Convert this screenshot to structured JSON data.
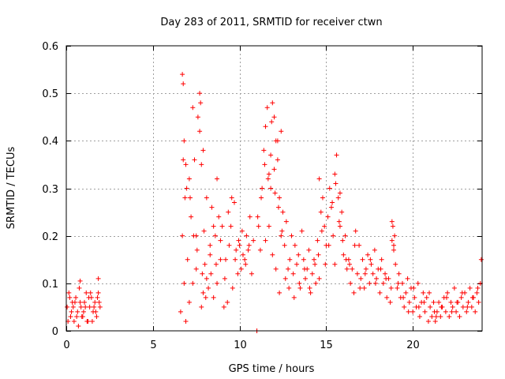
{
  "chart_data": {
    "type": "scatter",
    "title": "Day 283 of 2011, SRMTID for receiver ctwn",
    "xlabel": "GPS time / hours",
    "ylabel": "SRMTID / TECUs",
    "xlim": [
      0,
      24
    ],
    "ylim": [
      0,
      0.6
    ],
    "x_ticks": [
      0,
      5,
      10,
      15,
      20
    ],
    "x_tick_labels": [
      "0",
      "5",
      "10",
      "15",
      "20"
    ],
    "y_ticks": [
      0,
      0.1,
      0.2,
      0.3,
      0.4,
      0.5,
      0.6
    ],
    "y_tick_labels": [
      "0",
      "0.1",
      "0.2",
      "0.3",
      "0.4",
      "0.5",
      "0.6"
    ],
    "grid": true,
    "marker": "plus",
    "color": "#ff0000",
    "series": [
      {
        "name": "SRMTID",
        "x": [
          0.05,
          0.15,
          0.25,
          0.35,
          0.45,
          0.55,
          0.65,
          0.75,
          0.85,
          0.95,
          1.05,
          1.15,
          1.25,
          1.35,
          1.45,
          1.55,
          1.65,
          1.75,
          1.85,
          1.95,
          0.1,
          0.3,
          0.5,
          0.7,
          0.9,
          1.1,
          1.3,
          1.5,
          1.7,
          1.9,
          0.2,
          0.4,
          0.6,
          0.8,
          1.0,
          1.2,
          1.4,
          1.6,
          1.8,
          0.8,
          1.85,
          6.6,
          6.7,
          6.75,
          6.8,
          6.85,
          6.9,
          7.0,
          7.1,
          7.2,
          7.3,
          7.4,
          7.5,
          7.6,
          7.7,
          7.75,
          7.8,
          7.85,
          7.9,
          7.95,
          8.0,
          8.1,
          8.2,
          8.3,
          8.4,
          8.5,
          8.6,
          8.7,
          8.8,
          8.9,
          9.0,
          6.7,
          6.8,
          6.9,
          7.1,
          7.3,
          7.5,
          7.7,
          7.9,
          8.1,
          8.3,
          8.5,
          8.7,
          8.9,
          6.75,
          6.95,
          7.15,
          7.35,
          7.55,
          7.8,
          8.05,
          8.35,
          8.65,
          9.1,
          9.2,
          9.3,
          9.4,
          9.5,
          9.6,
          9.7,
          9.8,
          9.9,
          10.0,
          10.1,
          10.2,
          10.3,
          10.4,
          10.5,
          10.6,
          10.7,
          10.8,
          9.15,
          9.35,
          9.55,
          9.75,
          9.95,
          10.15,
          10.35,
          10.55,
          11.0,
          11.1,
          11.2,
          11.3,
          11.4,
          11.5,
          11.6,
          11.7,
          11.8,
          11.9,
          12.0,
          12.1,
          12.2,
          12.3,
          12.4,
          12.5,
          12.6,
          12.7,
          12.8,
          12.9,
          13.0,
          11.05,
          11.25,
          11.45,
          11.65,
          11.85,
          12.05,
          12.25,
          12.45,
          12.65,
          12.85,
          11.5,
          11.7,
          11.9,
          12.1,
          12.3,
          11.8,
          12.0,
          12.2,
          12.4,
          13.1,
          13.2,
          13.3,
          13.4,
          13.5,
          13.6,
          13.7,
          13.8,
          13.9,
          14.0,
          14.1,
          14.2,
          14.3,
          14.4,
          13.15,
          13.45,
          13.75,
          14.05,
          14.35,
          14.5,
          14.6,
          14.7,
          14.8,
          14.9,
          15.0,
          15.1,
          15.2,
          15.3,
          15.4,
          15.5,
          15.6,
          15.7,
          15.8,
          15.9,
          16.0,
          16.1,
          16.2,
          14.55,
          14.75,
          14.95,
          15.15,
          15.35,
          15.55,
          15.75,
          15.95,
          16.15,
          15.5,
          15.8,
          14.6,
          16.3,
          16.4,
          16.5,
          16.6,
          16.7,
          16.8,
          16.9,
          17.0,
          17.1,
          17.2,
          17.3,
          17.4,
          17.5,
          17.6,
          17.7,
          17.8,
          17.9,
          18.0,
          18.1,
          18.2,
          18.3,
          18.4,
          18.5,
          18.6,
          16.35,
          16.65,
          16.95,
          17.25,
          17.55,
          17.85,
          18.15,
          18.45,
          18.7,
          18.75,
          18.8,
          18.85,
          18.9,
          18.95,
          19.0,
          18.8,
          18.9,
          19.1,
          19.2,
          19.3,
          19.4,
          19.5,
          19.6,
          19.7,
          19.8,
          19.9,
          20.0,
          20.1,
          20.2,
          20.3,
          20.4,
          20.5,
          20.6,
          20.7,
          20.8,
          20.9,
          21.0,
          21.1,
          21.2,
          19.15,
          19.45,
          19.75,
          20.05,
          20.35,
          20.65,
          20.95,
          21.25,
          21.3,
          21.4,
          21.5,
          21.6,
          21.7,
          21.8,
          21.9,
          22.0,
          22.1,
          22.2,
          22.3,
          22.4,
          22.5,
          22.6,
          22.7,
          22.8,
          22.9,
          23.0,
          23.1,
          23.2,
          23.3,
          23.4,
          23.5,
          23.6,
          23.7,
          23.8,
          23.9,
          21.35,
          21.65,
          21.95,
          22.25,
          22.55,
          22.85,
          23.15,
          23.45,
          23.75,
          23.95,
          11.0
        ],
        "y": [
          0.05,
          0.08,
          0.03,
          0.06,
          0.02,
          0.07,
          0.04,
          0.09,
          0.05,
          0.03,
          0.06,
          0.08,
          0.02,
          0.05,
          0.07,
          0.04,
          0.06,
          0.03,
          0.08,
          0.05,
          0.02,
          0.04,
          0.06,
          0.01,
          0.03,
          0.05,
          0.07,
          0.02,
          0.04,
          0.06,
          0.07,
          0.05,
          0.03,
          0.06,
          0.04,
          0.02,
          0.08,
          0.05,
          0.07,
          0.105,
          0.11,
          0.04,
          0.54,
          0.52,
          0.1,
          0.28,
          0.02,
          0.15,
          0.06,
          0.24,
          0.47,
          0.36,
          0.2,
          0.45,
          0.5,
          0.48,
          0.35,
          0.12,
          0.08,
          0.21,
          0.14,
          0.11,
          0.09,
          0.18,
          0.26,
          0.22,
          0.2,
          0.32,
          0.24,
          0.15,
          0.22,
          0.2,
          0.4,
          0.35,
          0.32,
          0.1,
          0.13,
          0.42,
          0.38,
          0.28,
          0.16,
          0.07,
          0.1,
          0.19,
          0.36,
          0.3,
          0.28,
          0.2,
          0.17,
          0.05,
          0.07,
          0.12,
          0.14,
          0.05,
          0.15,
          0.06,
          0.18,
          0.22,
          0.09,
          0.27,
          0.17,
          0.12,
          0.18,
          0.13,
          0.16,
          0.15,
          0.2,
          0.17,
          0.24,
          0.12,
          0.19,
          0.11,
          0.25,
          0.28,
          0.15,
          0.19,
          0.21,
          0.14,
          0.18,
          0.0,
          0.22,
          0.17,
          0.3,
          0.38,
          0.43,
          0.47,
          0.33,
          0.37,
          0.48,
          0.45,
          0.4,
          0.36,
          0.28,
          0.42,
          0.25,
          0.18,
          0.23,
          0.13,
          0.15,
          0.2,
          0.24,
          0.28,
          0.35,
          0.32,
          0.44,
          0.29,
          0.26,
          0.21,
          0.11,
          0.09,
          0.19,
          0.22,
          0.16,
          0.13,
          0.08,
          0.3,
          0.34,
          0.4,
          0.2,
          0.12,
          0.18,
          0.14,
          0.16,
          0.09,
          0.21,
          0.15,
          0.11,
          0.13,
          0.17,
          0.08,
          0.12,
          0.15,
          0.1,
          0.07,
          0.1,
          0.13,
          0.09,
          0.14,
          0.19,
          0.32,
          0.25,
          0.28,
          0.22,
          0.18,
          0.24,
          0.3,
          0.26,
          0.2,
          0.14,
          0.37,
          0.28,
          0.22,
          0.25,
          0.16,
          0.2,
          0.13,
          0.16,
          0.21,
          0.14,
          0.18,
          0.27,
          0.31,
          0.23,
          0.19,
          0.15,
          0.33,
          0.29,
          0.11,
          0.15,
          0.1,
          0.13,
          0.08,
          0.21,
          0.12,
          0.18,
          0.11,
          0.15,
          0.09,
          0.13,
          0.16,
          0.1,
          0.14,
          0.12,
          0.17,
          0.11,
          0.13,
          0.08,
          0.15,
          0.1,
          0.12,
          0.07,
          0.11,
          0.14,
          0.18,
          0.09,
          0.12,
          0.15,
          0.1,
          0.13,
          0.11,
          0.06,
          0.09,
          0.19,
          0.22,
          0.18,
          0.2,
          0.14,
          0.23,
          0.17,
          0.09,
          0.12,
          0.07,
          0.1,
          0.05,
          0.08,
          0.11,
          0.06,
          0.09,
          0.04,
          0.07,
          0.05,
          0.1,
          0.03,
          0.06,
          0.08,
          0.04,
          0.07,
          0.02,
          0.05,
          0.03,
          0.06,
          0.1,
          0.07,
          0.04,
          0.09,
          0.05,
          0.06,
          0.08,
          0.04,
          0.02,
          0.04,
          0.06,
          0.03,
          0.05,
          0.07,
          0.04,
          0.08,
          0.03,
          0.06,
          0.05,
          0.09,
          0.04,
          0.06,
          0.03,
          0.07,
          0.05,
          0.08,
          0.04,
          0.06,
          0.09,
          0.05,
          0.07,
          0.04,
          0.08,
          0.06,
          0.1,
          0.03,
          0.05,
          0.07,
          0.04,
          0.06,
          0.08,
          0.05,
          0.07,
          0.09,
          0.15,
          0.0
        ]
      }
    ]
  }
}
